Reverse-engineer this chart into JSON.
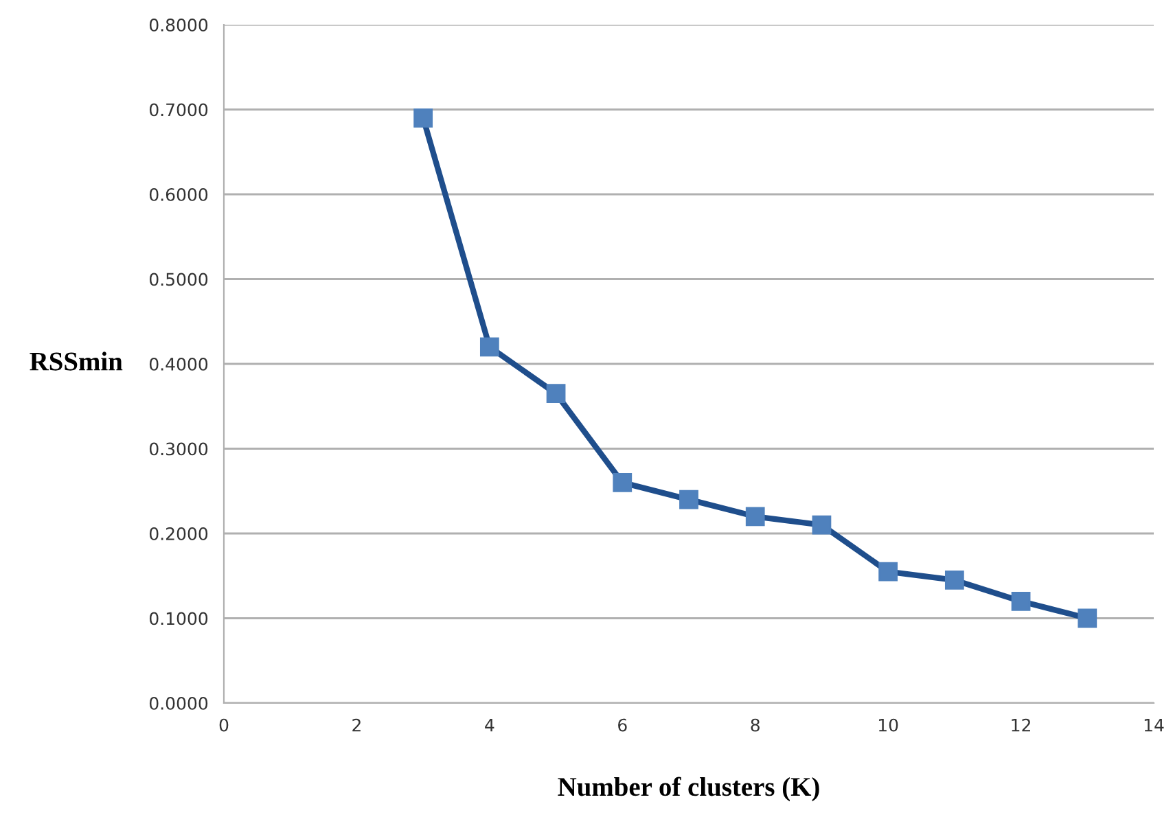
{
  "chart_data": {
    "type": "line",
    "xlabel": "Number of clusters (K)",
    "ylabel": "RSSmin",
    "x": [
      3,
      4,
      5,
      6,
      7,
      8,
      9,
      10,
      11,
      12,
      13
    ],
    "series": [
      {
        "color": "#1f4e8c",
        "values": [
          0.69,
          0.42,
          0.365,
          0.26,
          0.24,
          0.22,
          0.21,
          0.155,
          0.145,
          0.12,
          0.1
        ]
      }
    ],
    "xlim": [
      0,
      14
    ],
    "xticks": [
      0,
      2,
      4,
      6,
      8,
      10,
      12,
      14
    ],
    "ylim": [
      0,
      0.8
    ],
    "yticks": [
      {
        "value": 0,
        "label": "0.0000"
      },
      {
        "value": 0.1,
        "label": "0.1000"
      },
      {
        "value": 0.2,
        "label": "0.2000"
      },
      {
        "value": 0.3,
        "label": "0.3000"
      },
      {
        "value": 0.4,
        "label": "0.4000"
      },
      {
        "value": 0.5,
        "label": "0.5000"
      },
      {
        "value": 0.6,
        "label": "0.6000"
      },
      {
        "value": 0.7,
        "label": "0.7000"
      },
      {
        "value": 0.8,
        "label": "0.8000"
      }
    ],
    "grid": "y",
    "marker": "square",
    "line_style": "solid"
  }
}
